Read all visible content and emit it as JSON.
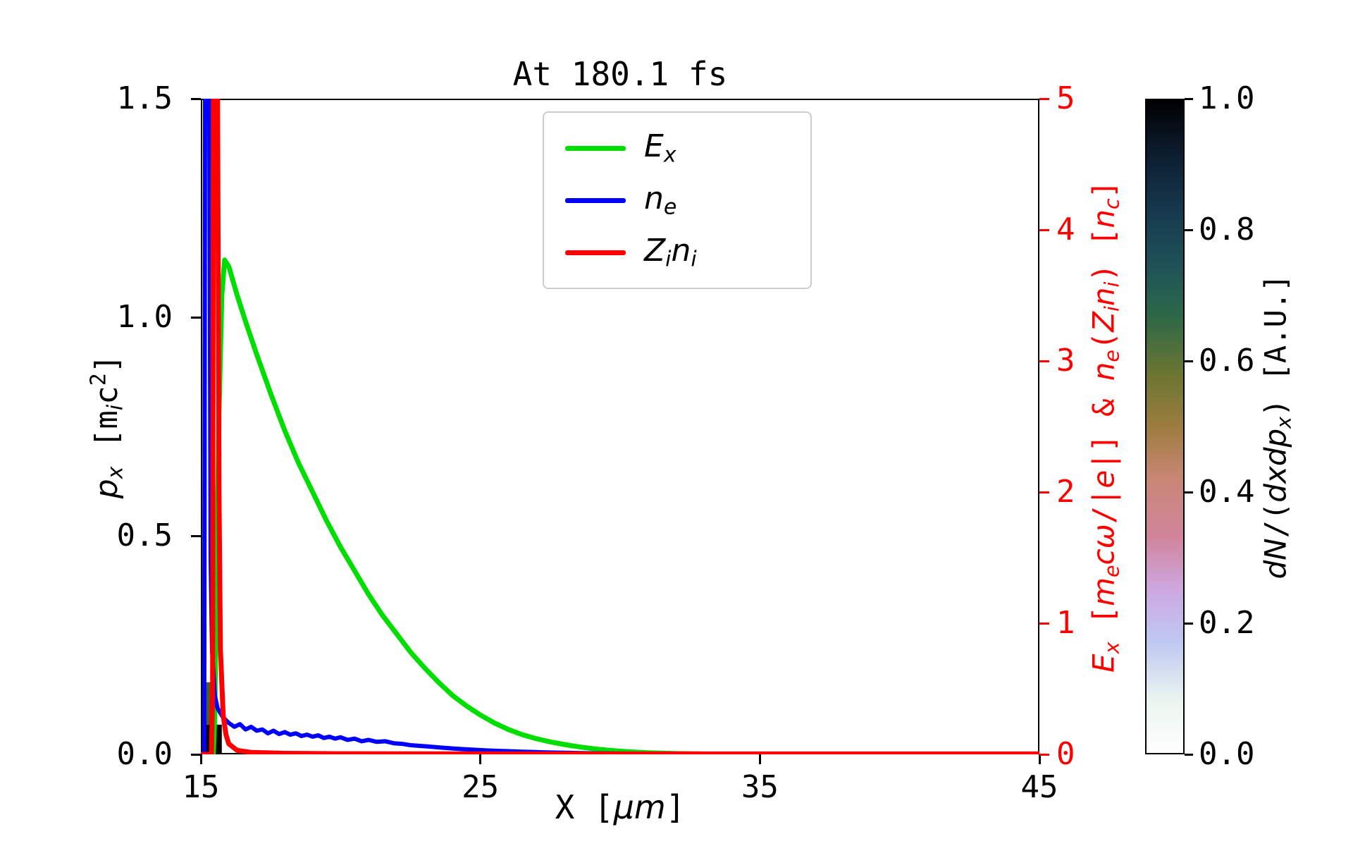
{
  "title": "At 180.1 fs",
  "labels": {
    "x": [
      {
        "t": "X [",
        "s": "n"
      },
      {
        "t": "μm",
        "s": "i"
      },
      {
        "t": "]",
        "s": "n"
      }
    ],
    "left": [
      {
        "t": "p",
        "s": "i"
      },
      {
        "t": "x",
        "s": "sub"
      },
      {
        "t": " [m",
        "s": "n"
      },
      {
        "t": "i",
        "s": "sub"
      },
      {
        "t": "c",
        "s": "n"
      },
      {
        "t": "2",
        "s": "sup"
      },
      {
        "t": "]",
        "s": "n"
      }
    ],
    "right": [
      {
        "t": "E",
        "s": "i"
      },
      {
        "t": "x",
        "s": "sub"
      },
      {
        "t": " [",
        "s": "n"
      },
      {
        "t": "m",
        "s": "i"
      },
      {
        "t": "e",
        "s": "sub"
      },
      {
        "t": "cω",
        "s": "i"
      },
      {
        "t": "/|",
        "s": "n"
      },
      {
        "t": "e",
        "s": "i"
      },
      {
        "t": "|] & ",
        "s": "n"
      },
      {
        "t": "n",
        "s": "i"
      },
      {
        "t": "e",
        "s": "sub"
      },
      {
        "t": "(",
        "s": "n"
      },
      {
        "t": "Z",
        "s": "i"
      },
      {
        "t": "i",
        "s": "sub"
      },
      {
        "t": "n",
        "s": "i"
      },
      {
        "t": "i",
        "s": "sub"
      },
      {
        "t": ") [",
        "s": "n"
      },
      {
        "t": "n",
        "s": "i"
      },
      {
        "t": "c",
        "s": "sub"
      },
      {
        "t": "]",
        "s": "n"
      }
    ],
    "colorbar": [
      {
        "t": "dN",
        "s": "i"
      },
      {
        "t": "/(",
        "s": "n"
      },
      {
        "t": "dxdp",
        "s": "i"
      },
      {
        "t": "x",
        "s": "sub"
      },
      {
        "t": ") [A.U.]",
        "s": "n"
      }
    ]
  },
  "legend": {
    "items": [
      {
        "name": "E_x",
        "color": "#00dd00",
        "parts": [
          {
            "t": "E",
            "s": "i"
          },
          {
            "t": "x",
            "s": "sub"
          }
        ]
      },
      {
        "name": "n_e",
        "color": "#0000ff",
        "parts": [
          {
            "t": "n",
            "s": "i"
          },
          {
            "t": "e",
            "s": "sub"
          }
        ]
      },
      {
        "name": "Z_i n_i",
        "color": "#ff0000",
        "parts": [
          {
            "t": "Z",
            "s": "i"
          },
          {
            "t": "i",
            "s": "sub"
          },
          {
            "t": "n",
            "s": "i"
          },
          {
            "t": "i",
            "s": "sub"
          }
        ]
      }
    ]
  },
  "chart_data": {
    "type": "line",
    "title": "At 180.1 fs",
    "xlabel": "X [μm]",
    "ylabel_left": "p_x [m_i c^2]",
    "ylabel_right": "E_x [m_e cω/|e|] & n_e(Z_i n_i) [n_c]",
    "xlim": [
      15,
      45
    ],
    "ylim_left": [
      0.0,
      1.5
    ],
    "ylim_right": [
      0,
      5
    ],
    "x_ticks": [
      "15",
      "25",
      "35",
      "45"
    ],
    "y_ticks_left": [
      "0.0",
      "0.5",
      "1.0",
      "1.5"
    ],
    "y_ticks_right": [
      "0",
      "1",
      "2",
      "3",
      "4",
      "5"
    ],
    "grid": false,
    "legend_position": "upper center",
    "colorbar": {
      "label": "dN/(dxdp_x) [A.U.]",
      "lim": [
        0.0,
        1.0
      ],
      "ticks": [
        "0.0",
        "0.2",
        "0.4",
        "0.6",
        "0.8",
        "1.0"
      ],
      "colormap": "cubehelix reversed (white to black)",
      "gradient_stops": [
        {
          "p": 0,
          "c": "#ffffff"
        },
        {
          "p": 8,
          "c": "#eaf5ef"
        },
        {
          "p": 17,
          "c": "#bfc8f1"
        },
        {
          "p": 25,
          "c": "#cda8e0"
        },
        {
          "p": 33,
          "c": "#d1849c"
        },
        {
          "p": 42,
          "c": "#c98775"
        },
        {
          "p": 50,
          "c": "#9c7d3f"
        },
        {
          "p": 58,
          "c": "#6b7631"
        },
        {
          "p": 67,
          "c": "#2c6848"
        },
        {
          "p": 75,
          "c": "#1e5158"
        },
        {
          "p": 83,
          "c": "#16394e"
        },
        {
          "p": 92,
          "c": "#0c1c2e"
        },
        {
          "p": 100,
          "c": "#000000"
        }
      ]
    },
    "series": [
      {
        "name": "E_x",
        "color": "#00dd00",
        "axis": "right",
        "width": 7,
        "points": [
          [
            15.0,
            0.0
          ],
          [
            15.45,
            0.0
          ],
          [
            15.5,
            0.3
          ],
          [
            15.55,
            1.2
          ],
          [
            15.65,
            2.6
          ],
          [
            15.75,
            3.5
          ],
          [
            15.85,
            3.77
          ],
          [
            16.0,
            3.72
          ],
          [
            16.3,
            3.5
          ],
          [
            16.6,
            3.3
          ],
          [
            17.0,
            3.05
          ],
          [
            17.5,
            2.75
          ],
          [
            18.0,
            2.47
          ],
          [
            18.5,
            2.22
          ],
          [
            19.0,
            2.0
          ],
          [
            19.5,
            1.78
          ],
          [
            20.0,
            1.58
          ],
          [
            20.5,
            1.4
          ],
          [
            21.0,
            1.22
          ],
          [
            21.5,
            1.06
          ],
          [
            22.0,
            0.92
          ],
          [
            22.5,
            0.78
          ],
          [
            23.0,
            0.66
          ],
          [
            23.5,
            0.55
          ],
          [
            24.0,
            0.45
          ],
          [
            24.5,
            0.37
          ],
          [
            25.0,
            0.3
          ],
          [
            25.5,
            0.24
          ],
          [
            26.0,
            0.19
          ],
          [
            26.5,
            0.15
          ],
          [
            27.0,
            0.12
          ],
          [
            27.5,
            0.095
          ],
          [
            28.0,
            0.075
          ],
          [
            28.5,
            0.058
          ],
          [
            29.0,
            0.044
          ],
          [
            29.5,
            0.033
          ],
          [
            30.0,
            0.024
          ],
          [
            30.5,
            0.017
          ],
          [
            31.0,
            0.012
          ],
          [
            32.0,
            0.006
          ],
          [
            33.0,
            0.003
          ],
          [
            34.0,
            0.001
          ],
          [
            35.0,
            0.0
          ],
          [
            45.0,
            0.0
          ]
        ]
      },
      {
        "name": "n_e",
        "color": "#0000ff",
        "axis": "right",
        "width": 6,
        "points": [
          [
            15.0,
            0.0
          ],
          [
            15.12,
            0.0
          ],
          [
            15.15,
            5.0
          ],
          [
            15.3,
            5.0
          ],
          [
            15.35,
            1.5
          ],
          [
            15.4,
            0.8
          ],
          [
            15.5,
            0.45
          ],
          [
            15.6,
            0.35
          ],
          [
            15.8,
            0.28
          ],
          [
            16.0,
            0.24
          ],
          [
            16.2,
            0.21
          ],
          [
            16.4,
            0.23
          ],
          [
            16.6,
            0.19
          ],
          [
            16.8,
            0.21
          ],
          [
            17.0,
            0.18
          ],
          [
            17.2,
            0.19
          ],
          [
            17.4,
            0.16
          ],
          [
            17.6,
            0.18
          ],
          [
            17.8,
            0.155
          ],
          [
            18.0,
            0.17
          ],
          [
            18.2,
            0.15
          ],
          [
            18.4,
            0.16
          ],
          [
            18.6,
            0.14
          ],
          [
            18.8,
            0.15
          ],
          [
            19.0,
            0.135
          ],
          [
            19.2,
            0.145
          ],
          [
            19.4,
            0.125
          ],
          [
            19.6,
            0.135
          ],
          [
            19.8,
            0.12
          ],
          [
            20.0,
            0.13
          ],
          [
            20.25,
            0.11
          ],
          [
            20.5,
            0.12
          ],
          [
            20.75,
            0.1
          ],
          [
            21.0,
            0.11
          ],
          [
            21.3,
            0.095
          ],
          [
            21.6,
            0.1
          ],
          [
            21.9,
            0.085
          ],
          [
            22.2,
            0.08
          ],
          [
            22.5,
            0.07
          ],
          [
            22.8,
            0.065
          ],
          [
            23.1,
            0.06
          ],
          [
            23.4,
            0.055
          ],
          [
            23.7,
            0.05
          ],
          [
            24.0,
            0.045
          ],
          [
            24.4,
            0.04
          ],
          [
            24.8,
            0.035
          ],
          [
            25.2,
            0.03
          ],
          [
            25.6,
            0.027
          ],
          [
            26.0,
            0.024
          ],
          [
            26.5,
            0.02
          ],
          [
            27.0,
            0.017
          ],
          [
            27.5,
            0.014
          ],
          [
            28.0,
            0.012
          ],
          [
            28.5,
            0.01
          ],
          [
            29.0,
            0.008
          ],
          [
            30.0,
            0.006
          ],
          [
            31.0,
            0.005
          ],
          [
            32.0,
            0.004
          ],
          [
            33.0,
            0.003
          ],
          [
            35.0,
            0.002
          ],
          [
            38.0,
            0.002
          ],
          [
            41.0,
            0.001
          ],
          [
            45.0,
            0.001
          ]
        ]
      },
      {
        "name": "Z_i n_i",
        "color": "#ff0000",
        "axis": "right",
        "width": 7,
        "points": [
          [
            15.0,
            0.0
          ],
          [
            15.38,
            0.0
          ],
          [
            15.42,
            0.5
          ],
          [
            15.45,
            5.0
          ],
          [
            15.6,
            5.0
          ],
          [
            15.65,
            2.0
          ],
          [
            15.7,
            0.8
          ],
          [
            15.8,
            0.3
          ],
          [
            15.9,
            0.15
          ],
          [
            16.0,
            0.08
          ],
          [
            16.3,
            0.03
          ],
          [
            16.8,
            0.015
          ],
          [
            18.0,
            0.008
          ],
          [
            20.0,
            0.005
          ],
          [
            25.0,
            0.004
          ],
          [
            30.0,
            0.003
          ],
          [
            45.0,
            0.003
          ]
        ]
      }
    ],
    "histogram_cells": [
      {
        "x0": 15.15,
        "x1": 15.75,
        "p0": 0.0,
        "p1": 0.068,
        "color": "#000000"
      },
      {
        "x0": 15.15,
        "x1": 15.38,
        "p0": 0.068,
        "p1": 0.165,
        "color": "#4a5d2e"
      }
    ]
  }
}
